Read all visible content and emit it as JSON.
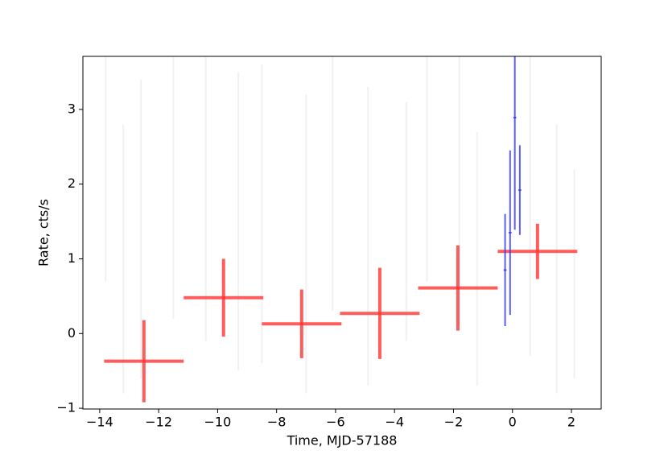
{
  "chart_data": {
    "type": "errorbar",
    "xlabel": "Time, MJD-57188",
    "ylabel": "Rate, cts/s",
    "xlim": [
      -14.57,
      3.01
    ],
    "ylim": [
      -1.01,
      3.71
    ],
    "xticks": [
      {
        "value": -14,
        "label": "−14"
      },
      {
        "value": -12,
        "label": "−12"
      },
      {
        "value": -10,
        "label": "−10"
      },
      {
        "value": -8,
        "label": "−8"
      },
      {
        "value": -6,
        "label": "−6"
      },
      {
        "value": -4,
        "label": "−4"
      },
      {
        "value": -2,
        "label": "−2"
      },
      0,
      2
    ],
    "yticks": [
      {
        "value": -1,
        "label": "−1"
      },
      0,
      1,
      2,
      3
    ],
    "series": [
      {
        "color": "#eeeeee",
        "width": 2,
        "x": [
          -13.8,
          -13.2,
          -12.6,
          -11.5,
          -10.4,
          -9.3,
          -8.5,
          -7.0,
          -6.1,
          -4.9,
          -3.6,
          -2.9,
          -1.8,
          -1.2,
          0.6,
          1.5,
          2.1
        ],
        "values": [
          2.2,
          1.0,
          1.4,
          2.0,
          1.8,
          1.5,
          1.6,
          1.2,
          2.0,
          1.3,
          1.5,
          2.2,
          1.9,
          1.0,
          1.7,
          1.0,
          0.8
        ],
        "xerr": [
          0,
          0,
          0,
          0,
          0,
          0,
          0,
          0,
          0,
          0,
          0,
          0,
          0,
          0,
          0,
          0,
          0
        ],
        "yerr": [
          1.5,
          1.8,
          2.0,
          1.8,
          1.9,
          2.0,
          2.0,
          2.0,
          1.7,
          2.0,
          1.6,
          1.5,
          1.8,
          1.7,
          2.0,
          1.8,
          1.4
        ]
      },
      {
        "color": "#ff3333",
        "width": 4,
        "x": [
          -12.5,
          -9.8,
          -7.15,
          -4.5,
          -1.85,
          0.85
        ],
        "values": [
          -0.37,
          0.48,
          0.13,
          0.27,
          0.61,
          1.1
        ],
        "xerr": [
          1.35,
          1.35,
          1.35,
          1.35,
          1.35,
          1.35
        ],
        "yerr": [
          0.55,
          0.52,
          0.46,
          0.61,
          0.57,
          0.37
        ]
      },
      {
        "color": "#3333ff",
        "width": 2,
        "x": [
          -0.25,
          -0.08,
          0.08,
          0.25
        ],
        "values": [
          0.85,
          1.35,
          2.89,
          1.92
        ],
        "xerr": [
          0.05,
          0.05,
          0.05,
          0.05
        ],
        "yerr": [
          0.75,
          1.1,
          1.5,
          0.6
        ]
      }
    ]
  }
}
